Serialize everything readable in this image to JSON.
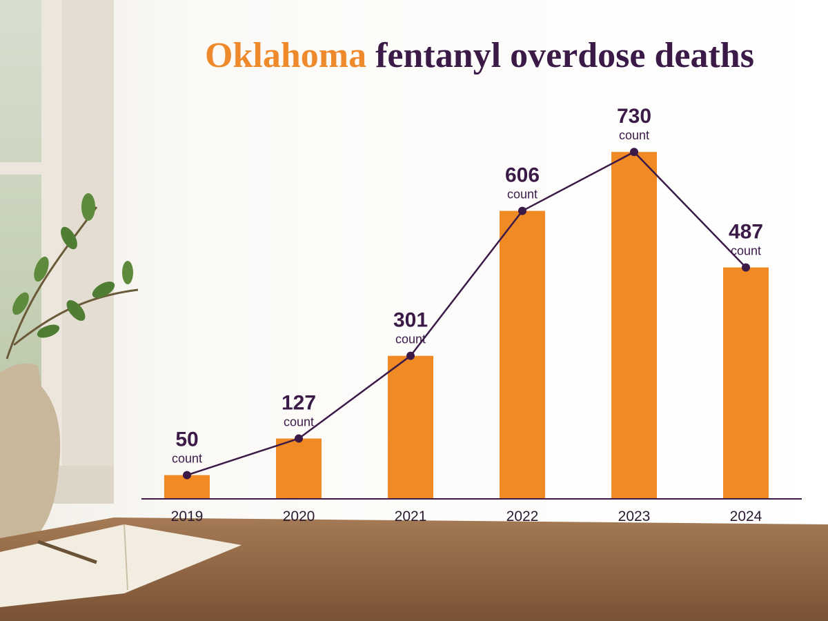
{
  "chart_data": {
    "type": "bar",
    "title": [
      "Oklahoma",
      "fentanyl overdose deaths"
    ],
    "categories": [
      "2019",
      "2020",
      "2021",
      "2022",
      "2023",
      "2024"
    ],
    "values": [
      50,
      127,
      301,
      606,
      730,
      487
    ],
    "unit": "count",
    "color": "#ef8a24",
    "line_color": "#3b1a48",
    "ylim": [
      0,
      800
    ]
  }
}
